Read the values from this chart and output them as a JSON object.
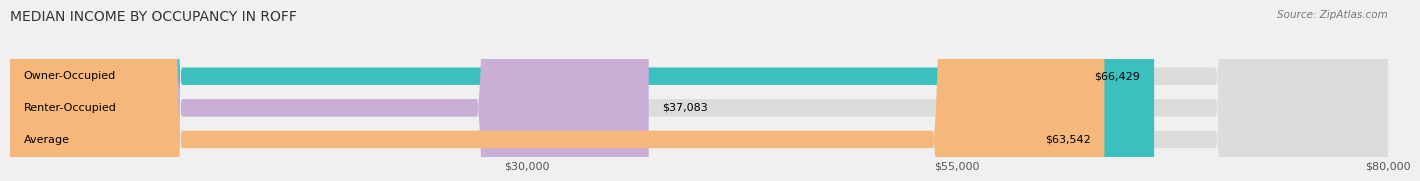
{
  "title": "MEDIAN INCOME BY OCCUPANCY IN ROFF",
  "source": "Source: ZipAtlas.com",
  "categories": [
    "Owner-Occupied",
    "Renter-Occupied",
    "Average"
  ],
  "values": [
    66429,
    37083,
    63542
  ],
  "bar_colors": [
    "#3bbfbf",
    "#c9aed6",
    "#f5b87a"
  ],
  "bg_color": "#f0f0f0",
  "xlim": [
    0,
    80000
  ],
  "xticks": [
    30000,
    55000,
    80000
  ],
  "xtick_labels": [
    "$30,000",
    "$55,000",
    "$80,000"
  ],
  "title_fontsize": 10,
  "label_fontsize": 8,
  "value_fontsize": 8,
  "source_fontsize": 7.5
}
